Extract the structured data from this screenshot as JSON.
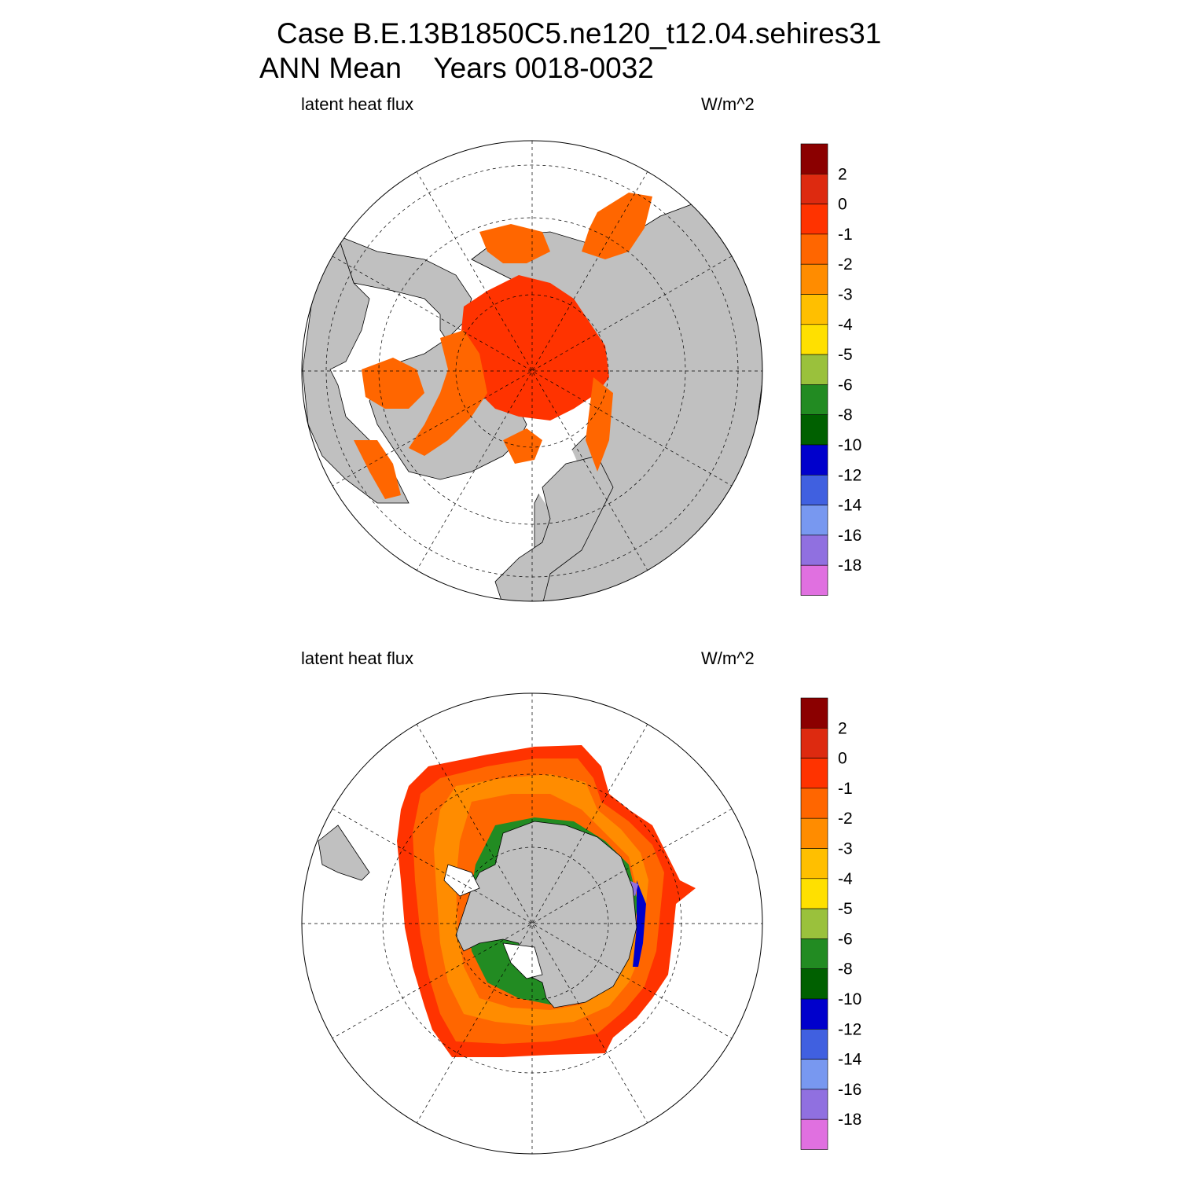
{
  "header": {
    "title_line1": "Case B.E.13B1850C5.ne120_t12.04.sehires31",
    "title_line2": "ANN Mean    Years 0018-0032"
  },
  "colors": {
    "land": "#c0c0c0",
    "ice_free_ocean": "#ffffff",
    "grid_line": "#000000"
  },
  "colorbar": {
    "colors": [
      "#8b0000",
      "#dd2a10",
      "#ff3300",
      "#ff6600",
      "#ff8c00",
      "#ffbf00",
      "#ffe000",
      "#9ac13c",
      "#228b22",
      "#006000",
      "#0000cc",
      "#4060e0",
      "#7898f0",
      "#9070e0",
      "#e070e0"
    ],
    "labels": [
      "2",
      "0",
      "-1",
      "-2",
      "-3",
      "-4",
      "-5",
      "-6",
      "-8",
      "-10",
      "-12",
      "-14",
      "-16",
      "-18"
    ]
  },
  "panels": [
    {
      "id": "north",
      "left_string": "latent heat flux",
      "right_string": "W/m^2"
    },
    {
      "id": "south",
      "left_string": "latent heat flux",
      "right_string": "W/m^2"
    }
  ]
}
